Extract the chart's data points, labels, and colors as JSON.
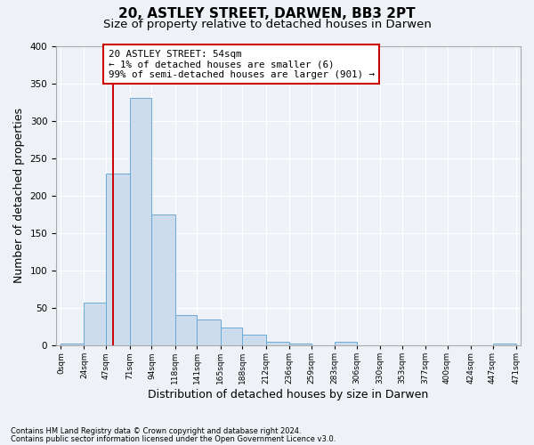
{
  "title": "20, ASTLEY STREET, DARWEN, BB3 2PT",
  "subtitle": "Size of property relative to detached houses in Darwen",
  "xlabel": "Distribution of detached houses by size in Darwen",
  "ylabel": "Number of detached properties",
  "footnote1": "Contains HM Land Registry data © Crown copyright and database right 2024.",
  "footnote2": "Contains public sector information licensed under the Open Government Licence v3.0.",
  "bin_edges": [
    0,
    24,
    47,
    71,
    94,
    118,
    141,
    165,
    188,
    212,
    236,
    259,
    283,
    306,
    330,
    353,
    377,
    400,
    424,
    447,
    471
  ],
  "bar_heights": [
    2,
    57,
    230,
    330,
    175,
    40,
    35,
    24,
    15,
    5,
    2,
    0,
    5,
    0,
    0,
    0,
    0,
    0,
    0,
    2
  ],
  "bar_color": "#ccdcec",
  "bar_edgecolor": "#6aaad4",
  "tick_labels": [
    "0sqm",
    "24sqm",
    "47sqm",
    "71sqm",
    "94sqm",
    "118sqm",
    "141sqm",
    "165sqm",
    "188sqm",
    "212sqm",
    "236sqm",
    "259sqm",
    "283sqm",
    "306sqm",
    "330sqm",
    "353sqm",
    "377sqm",
    "400sqm",
    "424sqm",
    "447sqm",
    "471sqm"
  ],
  "red_line_x": 54,
  "annotation_text": "20 ASTLEY STREET: 54sqm\n← 1% of detached houses are smaller (6)\n99% of semi-detached houses are larger (901) →",
  "annotation_box_color": "#ffffff",
  "annotation_border_color": "#cc0000",
  "ylim": [
    0,
    400
  ],
  "yticks": [
    0,
    50,
    100,
    150,
    200,
    250,
    300,
    350,
    400
  ],
  "bg_color": "#eef2f7",
  "plot_bg_color": "#eef2f7",
  "grid_color": "#ffffff",
  "title_fontsize": 11,
  "subtitle_fontsize": 9.5,
  "axis_label_fontsize": 9
}
